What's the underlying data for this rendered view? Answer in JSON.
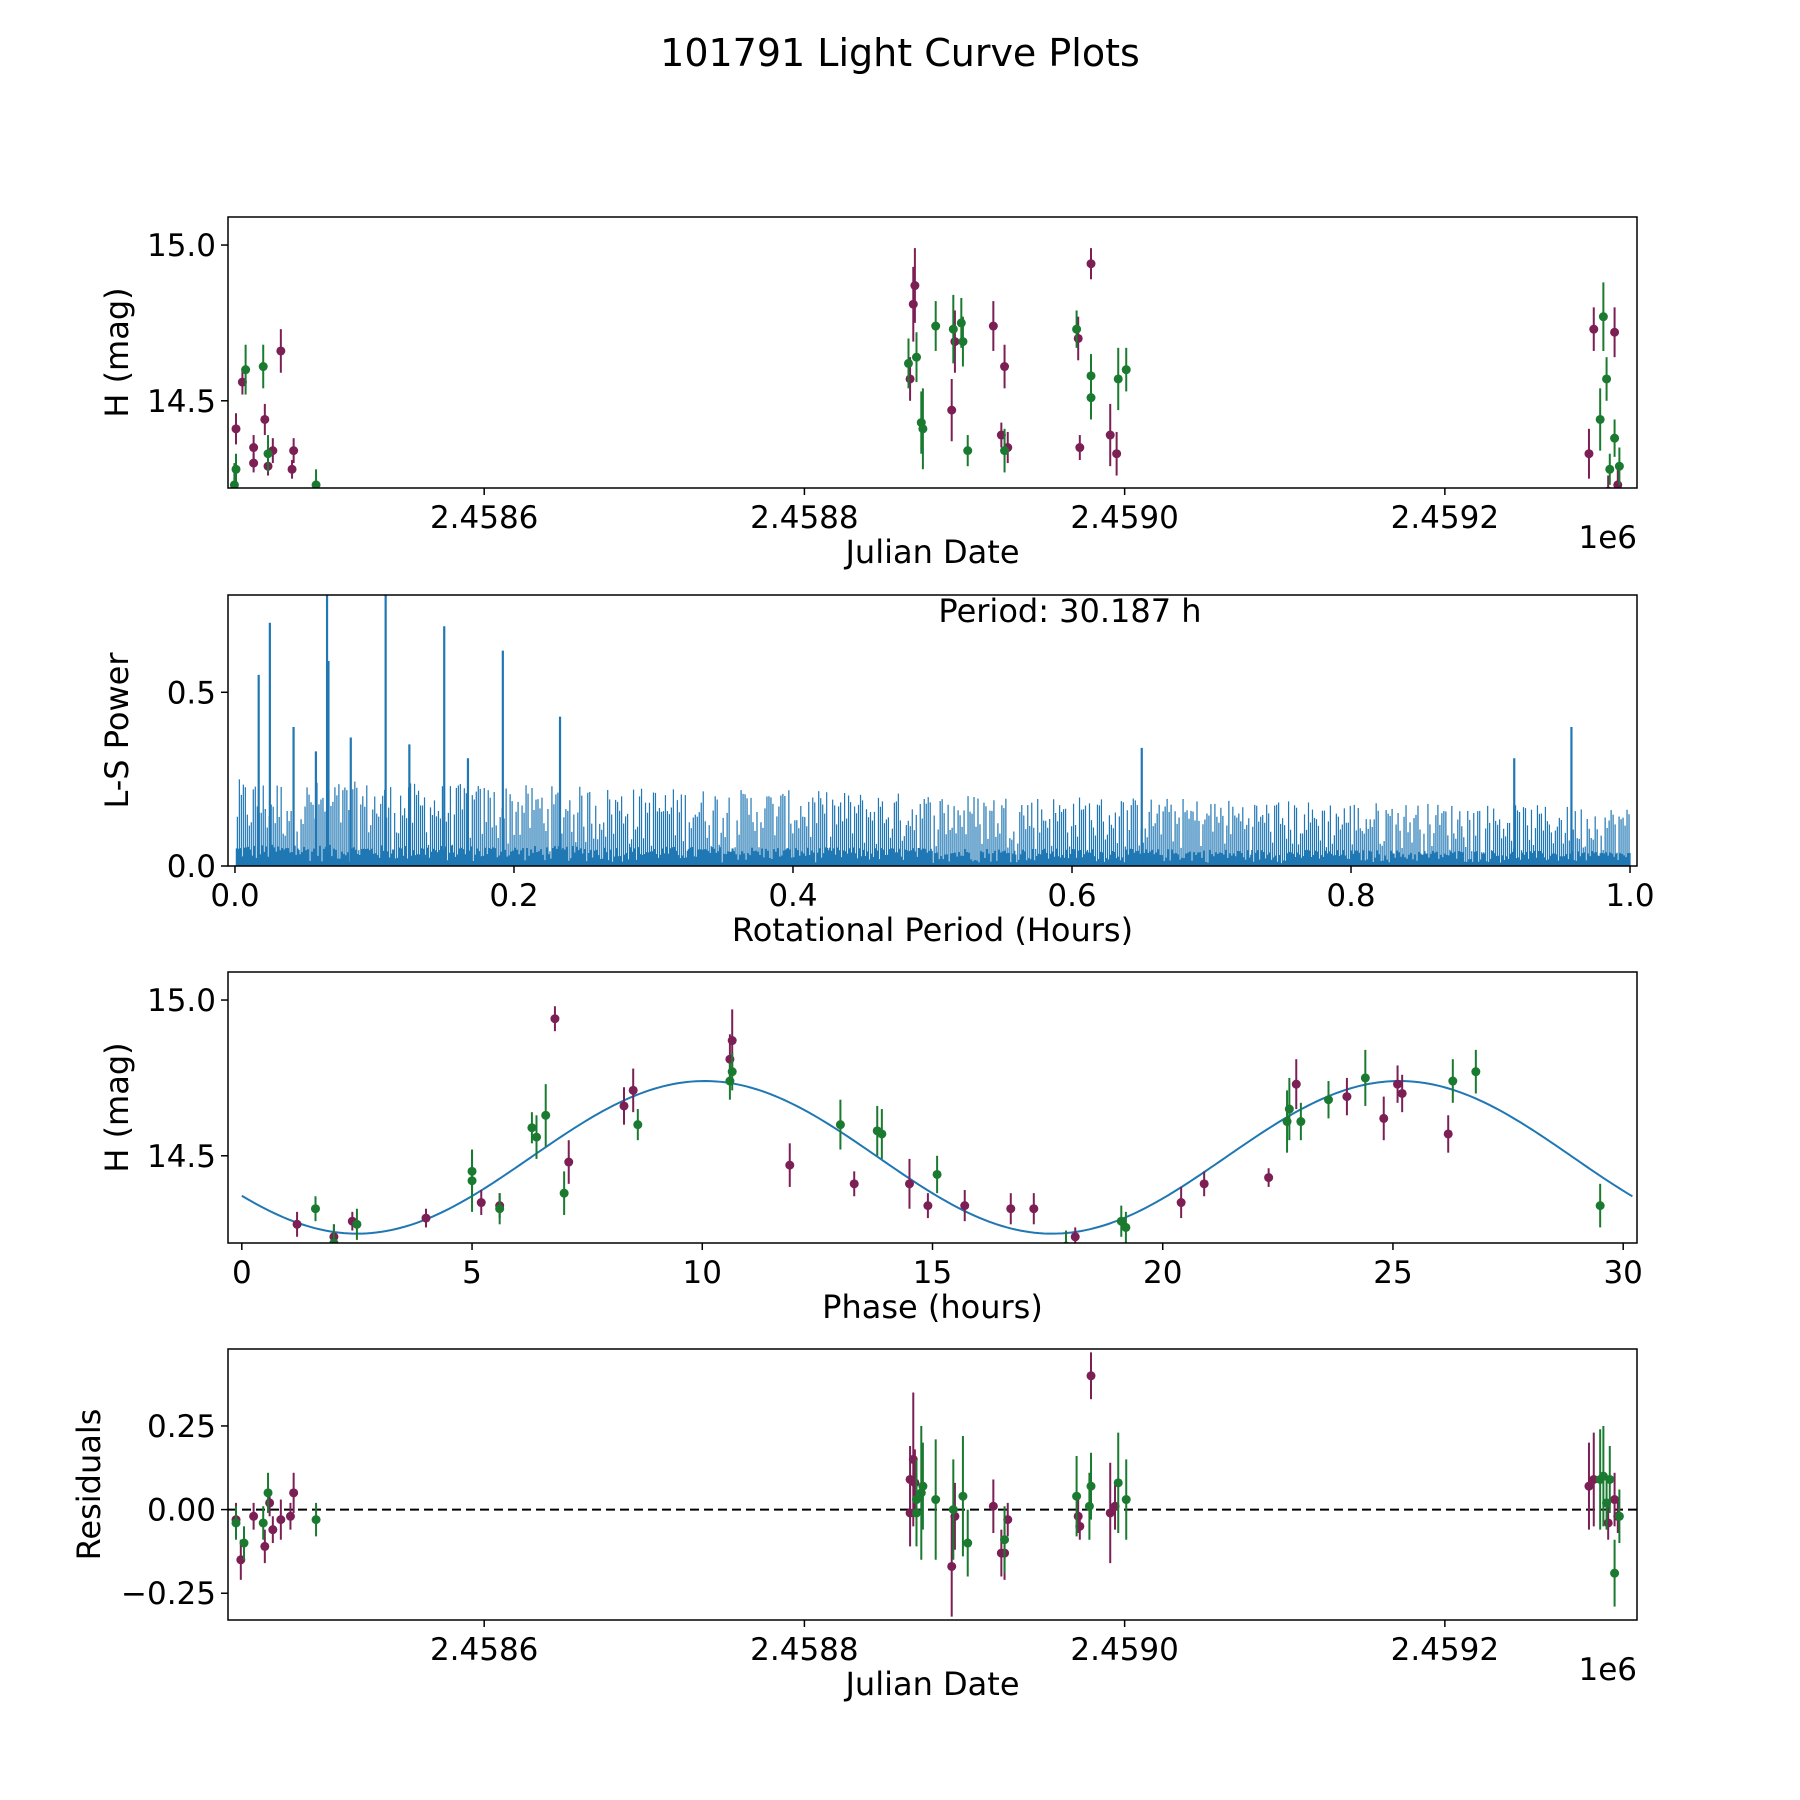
{
  "figure": {
    "title": "101791 Light Curve Plots"
  },
  "colors": {
    "band_a": "#7b1f55",
    "band_b": "#1a7a30",
    "line": "#1f77b4",
    "axis": "#000000"
  },
  "chart_data": [
    {
      "id": "lightcurve",
      "type": "scatter",
      "title": "",
      "xlabel": "Julian Date",
      "ylabel": "H (mag)",
      "x_offset_label": "1e6",
      "xlim": [
        2.45844,
        2.45932
      ],
      "ylim": [
        14.22,
        15.09
      ],
      "xticks": [
        2.4586,
        2.4588,
        2.459,
        2.4592
      ],
      "xtick_labels": [
        "2.4586",
        "2.4588",
        "2.4590",
        "2.4592"
      ],
      "yticks": [
        14.5,
        15.0
      ],
      "ytick_labels": [
        "14.5",
        "15.0"
      ],
      "series": [
        {
          "name": "band_a",
          "color": "#7b1f55",
          "points": [
            [
              2.458445,
              14.41,
              0.05
            ],
            [
              2.458449,
              14.56,
              0.04
            ],
            [
              2.458456,
              14.35,
              0.04
            ],
            [
              2.458456,
              14.3,
              0.03
            ],
            [
              2.458463,
              14.44,
              0.05
            ],
            [
              2.458465,
              14.29,
              0.03
            ],
            [
              2.458468,
              14.34,
              0.04
            ],
            [
              2.458473,
              14.66,
              0.07
            ],
            [
              2.458481,
              14.34,
              0.04
            ],
            [
              2.45848,
              14.28,
              0.03
            ],
            [
              2.458866,
              14.57,
              0.07
            ],
            [
              2.458868,
              14.81,
              0.12
            ],
            [
              2.458869,
              14.87,
              0.12
            ],
            [
              2.458892,
              14.47,
              0.1
            ],
            [
              2.458894,
              14.69,
              0.1
            ],
            [
              2.458918,
              14.74,
              0.08
            ],
            [
              2.458923,
              14.39,
              0.04
            ],
            [
              2.458925,
              14.61,
              0.07
            ],
            [
              2.458927,
              14.35,
              0.05
            ],
            [
              2.458971,
              14.7,
              0.07
            ],
            [
              2.458972,
              14.35,
              0.04
            ],
            [
              2.458979,
              14.94,
              0.05
            ],
            [
              2.458991,
              14.39,
              0.1
            ],
            [
              2.458995,
              14.33,
              0.07
            ],
            [
              2.45929,
              14.33,
              0.08
            ],
            [
              2.459293,
              14.73,
              0.07
            ],
            [
              2.459302,
              14.21,
              0.05
            ],
            [
              2.459306,
              14.72,
              0.08
            ],
            [
              2.459308,
              14.23,
              0.05
            ]
          ]
        },
        {
          "name": "band_b",
          "color": "#1a7a30",
          "points": [
            [
              2.458445,
              14.28,
              0.05
            ],
            [
              2.458444,
              14.23,
              0.07
            ],
            [
              2.458451,
              14.6,
              0.08
            ],
            [
              2.458462,
              14.61,
              0.07
            ],
            [
              2.458465,
              14.33,
              0.06
            ],
            [
              2.458495,
              14.23,
              0.05
            ],
            [
              2.458865,
              14.62,
              0.08
            ],
            [
              2.45887,
              14.64,
              0.08
            ],
            [
              2.458873,
              14.43,
              0.1
            ],
            [
              2.458874,
              14.41,
              0.13
            ],
            [
              2.458882,
              14.74,
              0.08
            ],
            [
              2.458893,
              14.73,
              0.11
            ],
            [
              2.458898,
              14.75,
              0.08
            ],
            [
              2.458899,
              14.69,
              0.08
            ],
            [
              2.458902,
              14.34,
              0.05
            ],
            [
              2.458925,
              14.34,
              0.07
            ],
            [
              2.45897,
              14.73,
              0.06
            ],
            [
              2.458979,
              14.58,
              0.07
            ],
            [
              2.458979,
              14.51,
              0.07
            ],
            [
              2.458996,
              14.57,
              0.1
            ],
            [
              2.459001,
              14.6,
              0.07
            ],
            [
              2.459297,
              14.44,
              0.1
            ],
            [
              2.459299,
              14.77,
              0.11
            ],
            [
              2.459301,
              14.57,
              0.07
            ],
            [
              2.459303,
              14.28,
              0.05
            ],
            [
              2.459306,
              14.38,
              0.06
            ],
            [
              2.459309,
              14.29,
              0.06
            ]
          ]
        }
      ]
    },
    {
      "id": "periodogram",
      "type": "line",
      "title": "",
      "xlabel": "Rotational Period (Hours)",
      "ylabel": "L-S Power",
      "annotation": "Period: 30.187 h",
      "xlim": [
        -0.005,
        1.005
      ],
      "ylim": [
        0.0,
        0.78
      ],
      "xticks": [
        0.0,
        0.2,
        0.4,
        0.6,
        0.8,
        1.0
      ],
      "xtick_labels": [
        "0.0",
        "0.2",
        "0.4",
        "0.6",
        "0.8",
        "1.0"
      ],
      "yticks": [
        0.0,
        0.5
      ],
      "ytick_labels": [
        "0.0",
        "0.5"
      ],
      "noise_floor": {
        "start": 0.25,
        "end": 0.17
      },
      "peaks": [
        [
          0.017,
          0.55
        ],
        [
          0.025,
          0.7
        ],
        [
          0.042,
          0.4
        ],
        [
          0.058,
          0.33
        ],
        [
          0.066,
          0.78
        ],
        [
          0.067,
          0.59
        ],
        [
          0.083,
          0.37
        ],
        [
          0.108,
          0.78
        ],
        [
          0.125,
          0.35
        ],
        [
          0.15,
          0.69
        ],
        [
          0.167,
          0.31
        ],
        [
          0.192,
          0.62
        ],
        [
          0.233,
          0.43
        ],
        [
          0.65,
          0.34
        ],
        [
          0.917,
          0.31
        ],
        [
          0.958,
          0.4
        ]
      ]
    },
    {
      "id": "phase",
      "type": "scatter",
      "title": "",
      "xlabel": "Phase (hours)",
      "ylabel": "H (mag)",
      "xlim": [
        -0.3,
        30.3
      ],
      "ylim": [
        14.22,
        15.09
      ],
      "xticks": [
        0,
        5,
        10,
        15,
        20,
        25,
        30
      ],
      "xtick_labels": [
        "0",
        "5",
        "10",
        "15",
        "20",
        "25",
        "30"
      ],
      "yticks": [
        14.5,
        15.0
      ],
      "ytick_labels": [
        "14.5",
        "15.0"
      ],
      "model": {
        "type": "sine",
        "mean": 14.495,
        "amplitude": 0.245,
        "period": 15.09,
        "peak_phase": 10.05
      },
      "series": [
        {
          "name": "band_a",
          "color": "#7b1f55",
          "points": [
            [
              1.2,
              14.28,
              0.04
            ],
            [
              2.4,
              14.29,
              0.03
            ],
            [
              2.0,
              14.24,
              0.04
            ],
            [
              4.0,
              14.3,
              0.03
            ],
            [
              5.2,
              14.35,
              0.04
            ],
            [
              5.6,
              14.34,
              0.04
            ],
            [
              6.8,
              14.94,
              0.04
            ],
            [
              7.1,
              14.48,
              0.07
            ],
            [
              8.3,
              14.66,
              0.06
            ],
            [
              8.5,
              14.71,
              0.07
            ],
            [
              10.6,
              14.81,
              0.08
            ],
            [
              10.65,
              14.87,
              0.1
            ],
            [
              11.9,
              14.47,
              0.07
            ],
            [
              13.3,
              14.41,
              0.04
            ],
            [
              14.5,
              14.41,
              0.08
            ],
            [
              14.9,
              14.34,
              0.04
            ],
            [
              15.7,
              14.34,
              0.05
            ],
            [
              16.7,
              14.33,
              0.05
            ],
            [
              17.2,
              14.33,
              0.05
            ],
            [
              18.1,
              14.24,
              0.03
            ],
            [
              20.4,
              14.35,
              0.05
            ],
            [
              20.9,
              14.41,
              0.04
            ],
            [
              22.3,
              14.43,
              0.03
            ],
            [
              22.9,
              14.73,
              0.08
            ],
            [
              24.0,
              14.69,
              0.06
            ],
            [
              24.8,
              14.62,
              0.07
            ],
            [
              25.1,
              14.73,
              0.06
            ],
            [
              25.2,
              14.7,
              0.06
            ],
            [
              26.2,
              14.57,
              0.06
            ]
          ]
        },
        {
          "name": "band_b",
          "color": "#1a7a30",
          "points": [
            [
              1.6,
              14.33,
              0.04
            ],
            [
              2.0,
              14.22,
              0.06
            ],
            [
              2.5,
              14.28,
              0.05
            ],
            [
              5.0,
              14.42,
              0.1
            ],
            [
              5.0,
              14.45,
              0.07
            ],
            [
              5.6,
              14.33,
              0.05
            ],
            [
              6.3,
              14.59,
              0.05
            ],
            [
              6.4,
              14.56,
              0.07
            ],
            [
              6.6,
              14.63,
              0.1
            ],
            [
              7.0,
              14.38,
              0.07
            ],
            [
              8.6,
              14.6,
              0.05
            ],
            [
              10.6,
              14.74,
              0.06
            ],
            [
              10.65,
              14.77,
              0.06
            ],
            [
              13.0,
              14.6,
              0.08
            ],
            [
              13.8,
              14.58,
              0.08
            ],
            [
              13.9,
              14.57,
              0.08
            ],
            [
              15.1,
              14.44,
              0.06
            ],
            [
              17.9,
              14.21,
              0.05
            ],
            [
              19.1,
              14.29,
              0.05
            ],
            [
              19.2,
              14.27,
              0.05
            ],
            [
              22.7,
              14.61,
              0.1
            ],
            [
              22.75,
              14.65,
              0.1
            ],
            [
              23.0,
              14.61,
              0.06
            ],
            [
              23.6,
              14.68,
              0.06
            ],
            [
              24.4,
              14.75,
              0.09
            ],
            [
              26.3,
              14.74,
              0.07
            ],
            [
              26.8,
              14.77,
              0.07
            ],
            [
              29.5,
              14.34,
              0.07
            ]
          ]
        }
      ]
    },
    {
      "id": "residuals",
      "type": "scatter",
      "title": "",
      "xlabel": "Julian Date",
      "ylabel": "Residuals",
      "x_offset_label": "1e6",
      "xlim": [
        2.45844,
        2.45932
      ],
      "ylim": [
        -0.33,
        0.48
      ],
      "xticks": [
        2.4586,
        2.4588,
        2.459,
        2.4592
      ],
      "xtick_labels": [
        "2.4586",
        "2.4588",
        "2.4590",
        "2.4592"
      ],
      "yticks": [
        -0.25,
        0.0,
        0.25
      ],
      "ytick_labels": [
        "−0.25",
        "0.00",
        "0.25"
      ],
      "reference_line": 0.0,
      "series": [
        {
          "name": "band_a",
          "color": "#7b1f55",
          "points": [
            [
              2.458445,
              -0.03,
              0.05
            ],
            [
              2.458448,
              -0.15,
              0.06
            ],
            [
              2.458456,
              -0.02,
              0.04
            ],
            [
              2.458463,
              -0.11,
              0.05
            ],
            [
              2.458466,
              0.02,
              0.04
            ],
            [
              2.458468,
              -0.06,
              0.04
            ],
            [
              2.458473,
              -0.03,
              0.06
            ],
            [
              2.458479,
              -0.02,
              0.04
            ],
            [
              2.458481,
              0.05,
              0.06
            ],
            [
              2.458866,
              0.09,
              0.1
            ],
            [
              2.458868,
              0.15,
              0.2
            ],
            [
              2.458869,
              0.08,
              0.1
            ],
            [
              2.458866,
              -0.01,
              0.1
            ],
            [
              2.458892,
              -0.17,
              0.15
            ],
            [
              2.458894,
              -0.02,
              0.1
            ],
            [
              2.458918,
              0.01,
              0.08
            ],
            [
              2.458923,
              -0.13,
              0.07
            ],
            [
              2.458925,
              -0.13,
              0.08
            ],
            [
              2.458927,
              -0.03,
              0.05
            ],
            [
              2.458971,
              -0.02,
              0.05
            ],
            [
              2.458972,
              -0.05,
              0.04
            ],
            [
              2.458979,
              0.4,
              0.07
            ],
            [
              2.458991,
              -0.01,
              0.15
            ],
            [
              2.458994,
              0.01,
              0.07
            ],
            [
              2.45929,
              0.07,
              0.13
            ],
            [
              2.459293,
              0.09,
              0.14
            ],
            [
              2.459302,
              -0.04,
              0.05
            ],
            [
              2.459306,
              0.03,
              0.08
            ],
            [
              2.459308,
              -0.02,
              0.05
            ]
          ]
        },
        {
          "name": "band_b",
          "color": "#1a7a30",
          "points": [
            [
              2.458445,
              -0.04,
              0.05
            ],
            [
              2.45845,
              -0.1,
              0.05
            ],
            [
              2.458462,
              -0.04,
              0.05
            ],
            [
              2.458465,
              0.05,
              0.06
            ],
            [
              2.458495,
              -0.03,
              0.05
            ],
            [
              2.45887,
              0.03,
              0.12
            ],
            [
              2.458873,
              0.05,
              0.2
            ],
            [
              2.458874,
              0.07,
              0.13
            ],
            [
              2.45887,
              -0.01,
              0.1
            ],
            [
              2.458882,
              0.03,
              0.18
            ],
            [
              2.458893,
              0.0,
              0.15
            ],
            [
              2.458899,
              0.04,
              0.18
            ],
            [
              2.458902,
              -0.1,
              0.1
            ],
            [
              2.458925,
              -0.09,
              0.1
            ],
            [
              2.45897,
              0.04,
              0.12
            ],
            [
              2.458979,
              0.07,
              0.1
            ],
            [
              2.458978,
              0.01,
              0.1
            ],
            [
              2.458996,
              0.08,
              0.15
            ],
            [
              2.459001,
              0.03,
              0.12
            ],
            [
              2.459297,
              0.09,
              0.15
            ],
            [
              2.459299,
              0.1,
              0.15
            ],
            [
              2.459301,
              0.02,
              0.08
            ],
            [
              2.459303,
              0.09,
              0.1
            ],
            [
              2.459306,
              -0.19,
              0.1
            ],
            [
              2.459309,
              -0.02,
              0.08
            ]
          ]
        }
      ]
    }
  ]
}
